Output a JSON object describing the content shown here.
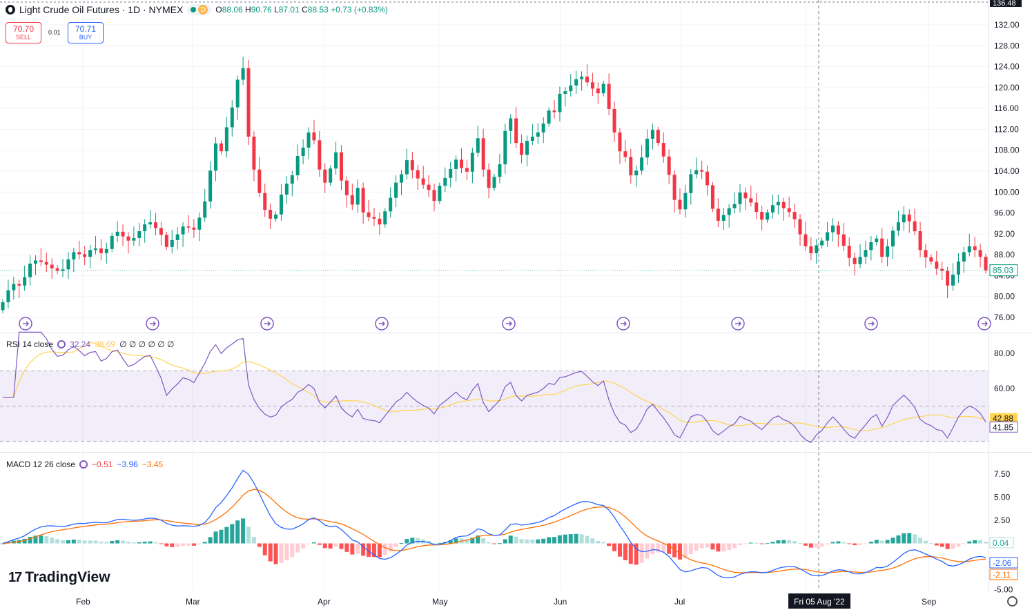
{
  "header": {
    "symbol_title": "Light Crude Oil Futures · 1D · NYMEX",
    "badge_letter": "D",
    "open_label": "O",
    "open": "88.06",
    "high_label": "H",
    "high": "90.76",
    "low_label": "L",
    "low": "87.01",
    "close_label": "C",
    "close": "88.53",
    "change": "+0.73 (+0.83%)"
  },
  "trade": {
    "sell_price": "70.70",
    "sell_label": "SELL",
    "spread": "0.01",
    "buy_price": "70.71",
    "buy_label": "BUY"
  },
  "colors": {
    "up": "#089981",
    "down": "#f23645",
    "rsi": "#7e57c2",
    "rsi_ma": "#ffd54f",
    "macd": "#2962ff",
    "signal": "#ff6d00",
    "hist_up_strong": "#26a69a",
    "hist_up_weak": "#b2dfdb",
    "hist_down_strong": "#ff5252",
    "hist_down_weak": "#ffcdd2"
  },
  "chart_data": [
    {
      "type": "candlestick",
      "title": "Light Crude Oil Futures · 1D · NYMEX",
      "ylim": [
        75,
        137
      ],
      "y_ticks": [
        "132.00",
        "128.00",
        "124.00",
        "120.00",
        "116.00",
        "112.00",
        "108.00",
        "104.00",
        "100.00",
        "96.00",
        "92.00",
        "88.00",
        "84.00",
        "80.00",
        "76.00"
      ],
      "x_ticks": [
        "Feb",
        "Mar",
        "Apr",
        "May",
        "Jun",
        "Jul",
        "Aug",
        "Sep"
      ],
      "last_price_label": "85.03",
      "top_price_label": "136.48",
      "crosshair_date_label": "Fri 05 Aug '22",
      "closes": [
        78.9,
        81.2,
        82.4,
        82.1,
        83.7,
        86.3,
        86.9,
        86.6,
        86.1,
        85.4,
        84.9,
        85.2,
        87.1,
        88.5,
        88.1,
        87.6,
        88.9,
        89.2,
        88.3,
        89.1,
        91.6,
        92.4,
        91.5,
        90.7,
        91.2,
        92.5,
        93.8,
        94.2,
        93.1,
        91.8,
        89.5,
        90.8,
        91.9,
        93.4,
        93.2,
        92.8,
        95.1,
        98.2,
        104.1,
        109.3,
        107.8,
        112.4,
        116.2,
        121.5,
        123.7,
        110.6,
        104.3,
        99.8,
        96.6,
        94.9,
        95.7,
        99.5,
        101.6,
        103.2,
        106.9,
        108.5,
        111.4,
        109.9,
        104.3,
        101.8,
        104.5,
        107.6,
        102.2,
        99.4,
        97.6,
        100.8,
        96.1,
        95.2,
        94.9,
        93.8,
        96.3,
        98.9,
        101.8,
        103.4,
        106.1,
        104.2,
        102.6,
        101.4,
        100.4,
        98.3,
        101.2,
        102.7,
        104.4,
        106.2,
        104.6,
        103.9,
        107.5,
        110.3,
        104.3,
        100.8,
        102.9,
        105.3,
        111.7,
        114.1,
        109.4,
        107.1,
        109.8,
        110.6,
        111.4,
        113.1,
        115.6,
        115.3,
        118.8,
        119.3,
        120.4,
        121.6,
        122.1,
        121.0,
        119.8,
        118.9,
        120.7,
        115.9,
        111.4,
        107.8,
        106.7,
        103.2,
        104.1,
        106.6,
        110.2,
        111.9,
        109.4,
        106.8,
        103.3,
        98.5,
        96.7,
        99.8,
        103.4,
        104.2,
        103.9,
        101.3,
        96.8,
        94.5,
        95.6,
        96.9,
        97.7,
        99.9,
        98.8,
        98.0,
        96.2,
        94.7,
        96.1,
        97.5,
        98.1,
        96.9,
        96.2,
        94.8,
        91.9,
        89.6,
        88.3,
        89.8,
        90.7,
        92.3,
        93.6,
        91.9,
        89.7,
        87.4,
        86.2,
        87.6,
        88.9,
        90.4,
        91.1,
        87.6,
        89.6,
        92.6,
        94.2,
        95.7,
        94.4,
        92.5,
        88.9,
        87.5,
        86.7,
        85.3,
        84.9,
        82.1,
        84.2,
        86.7,
        88.5,
        89.6,
        88.9,
        87.6,
        85.0
      ],
      "rsi": {
        "length": 14,
        "value": "41.85",
        "ma_value": "42.88",
        "header_value": "32.24",
        "header_ma": "38.69",
        "ylim": [
          15,
          95
        ],
        "y_ticks": [
          "80.00",
          "60.00"
        ],
        "bands": [
          70,
          50,
          30
        ]
      },
      "macd": {
        "fast": 12,
        "slow": 26,
        "hist_value": "-0.51",
        "macd_value": "-3.96",
        "signal_value": "-3.45",
        "axis_macd": "-2.06",
        "axis_signal": "-2.11",
        "axis_hist": "0.04",
        "ylim": [
          -5,
          9
        ],
        "y_ticks": [
          "7.50",
          "5.00",
          "2.50",
          "-5.00"
        ]
      }
    }
  ],
  "panes": {
    "rsi_label": "RSI 14 close",
    "rsi_val_a": "32.24",
    "rsi_val_b": "38.69",
    "rsi_extra": "∅ ∅ ∅ ∅ ∅ ∅",
    "macd_label": "MACD 12 26 close",
    "macd_a": "−0.51",
    "macd_b": "−3.96",
    "macd_c": "−3.45"
  },
  "brand": {
    "name": "TradingView",
    "mark": "17"
  }
}
